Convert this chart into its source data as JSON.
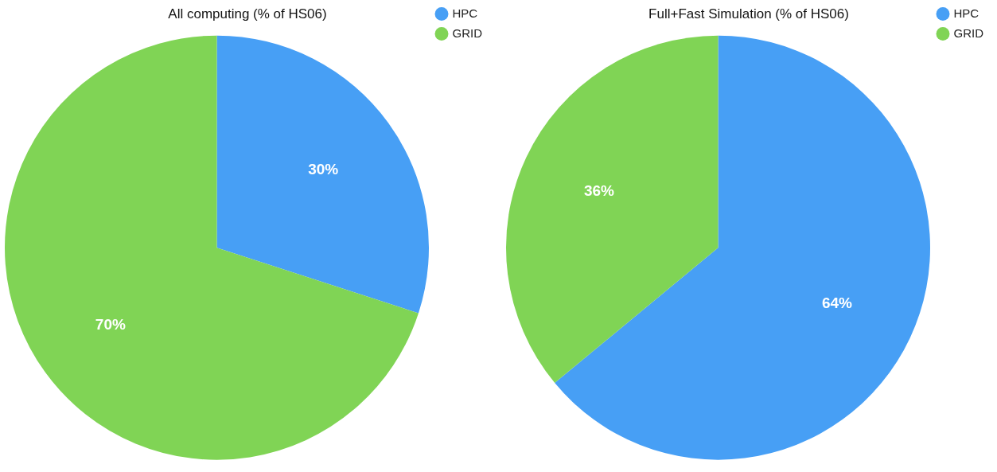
{
  "chart_data": [
    {
      "type": "pie",
      "title": "All computing (% of HS06)",
      "categories": [
        "HPC",
        "GRID"
      ],
      "values": [
        30,
        70
      ],
      "colors": [
        "#479ff5",
        "#80d455"
      ],
      "value_labels": [
        "30%",
        "70%"
      ],
      "legend": "top right"
    },
    {
      "type": "pie",
      "title": "Full+Fast Simulation (% of HS06)",
      "categories": [
        "HPC",
        "GRID"
      ],
      "values": [
        64,
        36
      ],
      "colors": [
        "#479ff5",
        "#80d455"
      ],
      "value_labels": [
        "64%",
        "36%"
      ],
      "legend": "top right"
    }
  ]
}
